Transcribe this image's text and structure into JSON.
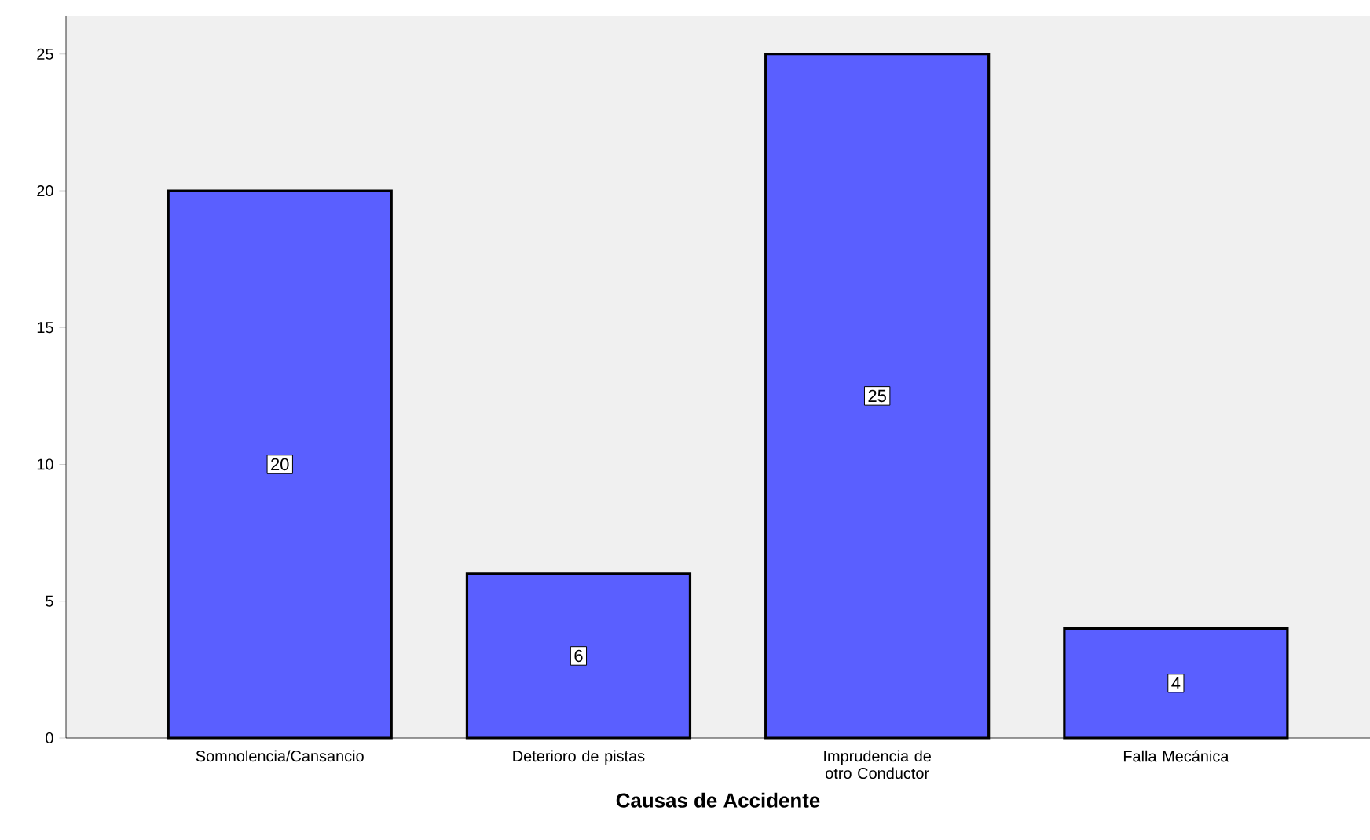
{
  "chart_data": {
    "type": "bar",
    "xlabel": "Causas de Accidente",
    "categories": [
      "Somnolencia/Cansancio",
      "Deterioro de  pistas",
      "Imprudencia de otro Conductor",
      "Falla Mecánica"
    ],
    "values": [
      20,
      6,
      25,
      4
    ],
    "color": "#5a5fff",
    "ylim": [
      0,
      26.4
    ],
    "yticks": [
      0,
      5,
      10,
      15,
      20,
      25
    ],
    "data_labels": true
  }
}
